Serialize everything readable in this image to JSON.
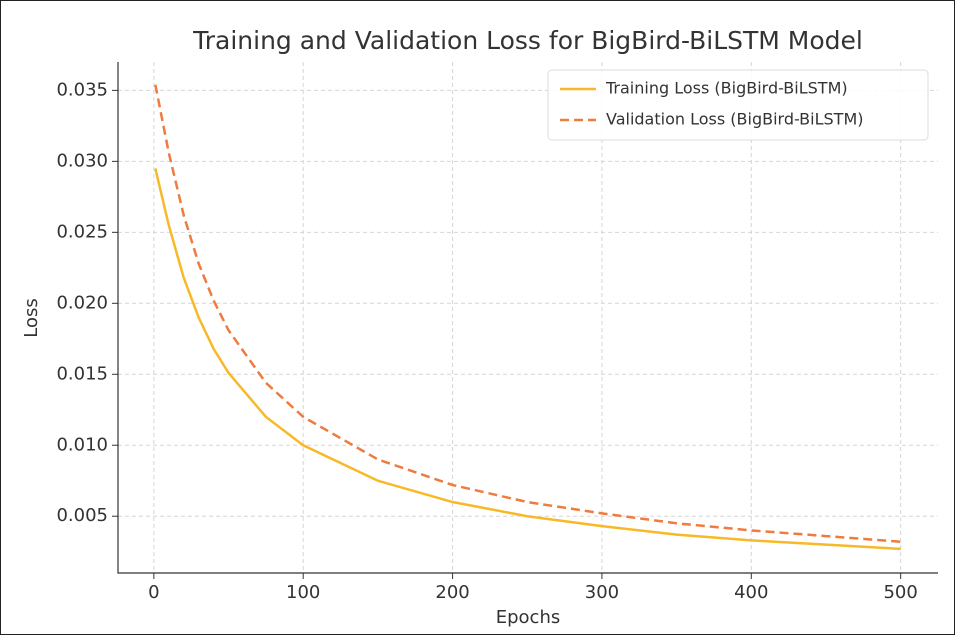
{
  "chart_data": {
    "type": "line",
    "title": "Training and Validation Loss for BigBird-BiLSTM Model",
    "xlabel": "Epochs",
    "ylabel": "Loss",
    "x": [
      1,
      10,
      20,
      30,
      40,
      50,
      75,
      100,
      150,
      200,
      250,
      300,
      350,
      400,
      450,
      500
    ],
    "series": [
      {
        "name": "Training Loss (BigBird-BiLSTM)",
        "color": "#f7b928",
        "dash": false,
        "values": [
          0.0295,
          0.0255,
          0.0218,
          0.019,
          0.0168,
          0.0151,
          0.012,
          0.01,
          0.0075,
          0.006,
          0.005,
          0.0043,
          0.0037,
          0.0033,
          0.003,
          0.0027
        ]
      },
      {
        "name": "Validation Loss (BigBird-BiLSTM)",
        "color": "#ef7b3e",
        "dash": true,
        "values": [
          0.0354,
          0.0306,
          0.0262,
          0.0228,
          0.0202,
          0.0181,
          0.0144,
          0.012,
          0.009,
          0.0072,
          0.006,
          0.0052,
          0.0045,
          0.004,
          0.0036,
          0.0032
        ]
      }
    ],
    "xlim": [
      -24,
      525
    ],
    "xticks": [
      0,
      100,
      200,
      300,
      400,
      500
    ],
    "ylim": [
      0.001,
      0.037
    ],
    "yticks": [
      0.005,
      {
        "value": 0.01,
        "label": "0.010"
      },
      0.015,
      {
        "value": 0.02,
        "label": "0.020"
      },
      0.025,
      {
        "value": 0.03,
        "label": "0.030"
      },
      0.035
    ],
    "grid": true,
    "legend": "upper right"
  }
}
